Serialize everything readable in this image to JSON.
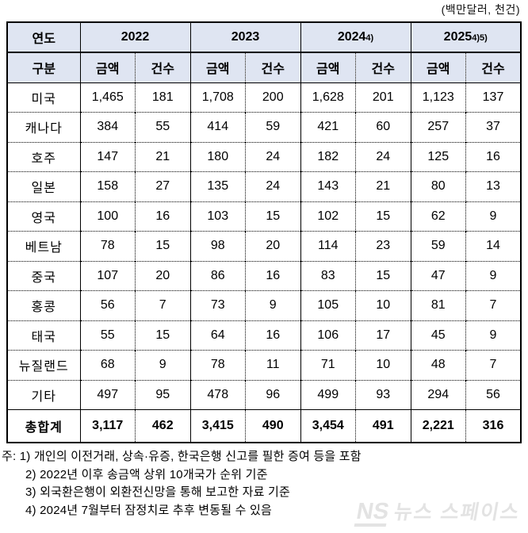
{
  "unit_note": "(백만달러, 천건)",
  "header": {
    "year_label": "연도",
    "category_label": "구분",
    "amount_label": "금액",
    "count_label": "건수",
    "years": [
      {
        "label": "2022",
        "sup": ""
      },
      {
        "label": "2023",
        "sup": ""
      },
      {
        "label": "2024",
        "sup": "4)"
      },
      {
        "label": "2025",
        "sup": "4)5)"
      }
    ]
  },
  "table": {
    "rows": [
      {
        "country": "미국",
        "values": [
          "1,465",
          "181",
          "1,708",
          "200",
          "1,628",
          "201",
          "1,123",
          "137"
        ]
      },
      {
        "country": "캐나다",
        "values": [
          "384",
          "55",
          "414",
          "59",
          "421",
          "60",
          "257",
          "37"
        ]
      },
      {
        "country": "호주",
        "values": [
          "147",
          "21",
          "180",
          "24",
          "182",
          "24",
          "125",
          "16"
        ]
      },
      {
        "country": "일본",
        "values": [
          "158",
          "27",
          "135",
          "24",
          "143",
          "21",
          "80",
          "13"
        ]
      },
      {
        "country": "영국",
        "values": [
          "100",
          "16",
          "103",
          "15",
          "102",
          "15",
          "62",
          "9"
        ]
      },
      {
        "country": "베트남",
        "values": [
          "78",
          "15",
          "98",
          "20",
          "114",
          "23",
          "59",
          "14"
        ]
      },
      {
        "country": "중국",
        "values": [
          "107",
          "20",
          "86",
          "16",
          "83",
          "15",
          "47",
          "9"
        ]
      },
      {
        "country": "홍콩",
        "values": [
          "56",
          "7",
          "73",
          "9",
          "105",
          "10",
          "81",
          "7"
        ]
      },
      {
        "country": "태국",
        "values": [
          "55",
          "15",
          "64",
          "16",
          "106",
          "17",
          "45",
          "9"
        ]
      },
      {
        "country": "뉴질랜드",
        "values": [
          "68",
          "9",
          "78",
          "11",
          "71",
          "10",
          "48",
          "7"
        ]
      },
      {
        "country": "기타",
        "values": [
          "497",
          "95",
          "478",
          "96",
          "499",
          "93",
          "294",
          "56"
        ]
      }
    ],
    "total_row": {
      "country": "총합계",
      "values": [
        "3,117",
        "462",
        "3,415",
        "490",
        "3,454",
        "491",
        "2,221",
        "316"
      ]
    }
  },
  "notes": [
    "주: 1) 개인의 이전거래, 상속·유증, 한국은행 신고를 필한 증여 등을 포함",
    "2) 2022년 이후 송금액 상위 10개국가 순위 기준",
    "3) 외국환은행이 외환전신망을 통해 보고한 자료 기준",
    "4) 2024년 7월부터 잠정치로 추후 변동될 수 있음"
  ],
  "watermark": {
    "prefix": "NS",
    "text": "뉴스 스페이스"
  },
  "colors": {
    "header_bg": "#dfe5f2",
    "border": "#000000",
    "background": "#ffffff"
  },
  "chart_data": {
    "type": "table",
    "title": "연도별 국가별 해외송금 현황",
    "unit_label": "(백만달러, 천건)",
    "row_header_label": "연도 / 구분",
    "column_groups": [
      "2022",
      "2023",
      "2024",
      "2025"
    ],
    "sub_columns": [
      "금액",
      "건수"
    ],
    "rows": [
      {
        "label": "미국",
        "values": [
          1465,
          181,
          1708,
          200,
          1628,
          201,
          1123,
          137
        ]
      },
      {
        "label": "캐나다",
        "values": [
          384,
          55,
          414,
          59,
          421,
          60,
          257,
          37
        ]
      },
      {
        "label": "호주",
        "values": [
          147,
          21,
          180,
          24,
          182,
          24,
          125,
          16
        ]
      },
      {
        "label": "일본",
        "values": [
          158,
          27,
          135,
          24,
          143,
          21,
          80,
          13
        ]
      },
      {
        "label": "영국",
        "values": [
          100,
          16,
          103,
          15,
          102,
          15,
          62,
          9
        ]
      },
      {
        "label": "베트남",
        "values": [
          78,
          15,
          98,
          20,
          114,
          23,
          59,
          14
        ]
      },
      {
        "label": "중국",
        "values": [
          107,
          20,
          86,
          16,
          83,
          15,
          47,
          9
        ]
      },
      {
        "label": "홍콩",
        "values": [
          56,
          7,
          73,
          9,
          105,
          10,
          81,
          7
        ]
      },
      {
        "label": "태국",
        "values": [
          55,
          15,
          64,
          16,
          106,
          17,
          45,
          9
        ]
      },
      {
        "label": "뉴질랜드",
        "values": [
          68,
          9,
          78,
          11,
          71,
          10,
          48,
          7
        ]
      },
      {
        "label": "기타",
        "values": [
          497,
          95,
          478,
          96,
          499,
          93,
          294,
          56
        ]
      },
      {
        "label": "총합계",
        "values": [
          3117,
          462,
          3415,
          490,
          3454,
          491,
          2221,
          316
        ]
      }
    ]
  }
}
